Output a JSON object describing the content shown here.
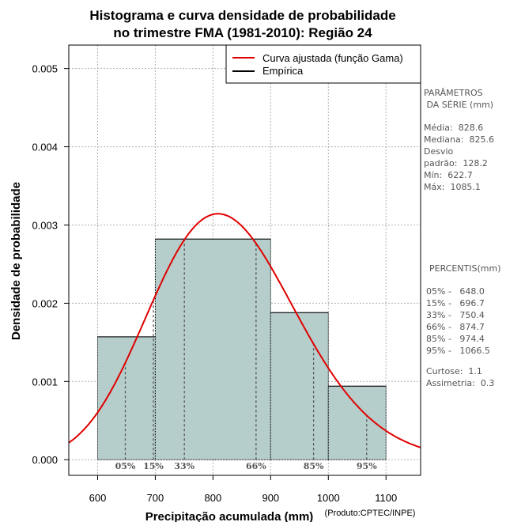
{
  "chart_data": {
    "type": "histogram",
    "title_line1": "Histograma e curva densidade de probabilidade",
    "title_line2": "no trimestre FMA (1981-2010): Região 24",
    "xlabel": "Precipitação acumulada (mm)",
    "ylabel": "Densidade de probabilidade",
    "credit": "(Produto:CPTEC/INPE)",
    "xlim": [
      550,
      1160
    ],
    "ylim": [
      -0.0002,
      0.0053
    ],
    "x_ticks": [
      600,
      700,
      800,
      900,
      1000,
      1100
    ],
    "y_ticks": [
      0.0,
      0.001,
      0.002,
      0.003,
      0.004,
      0.005
    ],
    "y_tick_labels": [
      "0.000",
      "0.001",
      "0.002",
      "0.003",
      "0.004",
      "0.005"
    ],
    "bins": [
      {
        "from": 600,
        "to": 700,
        "density": 0.00157
      },
      {
        "from": 700,
        "to": 900,
        "density": 0.00282
      },
      {
        "from": 900,
        "to": 1000,
        "density": 0.00188
      },
      {
        "from": 1000,
        "to": 1100,
        "density": 0.00094
      }
    ],
    "bin_color": "#b5cdcb",
    "curve_color": "#e00000",
    "gamma_curve": {
      "name": "Curva ajustada (função Gama)",
      "mean": 828.6,
      "sd": 128.2
    },
    "empirical_name": "Empírica",
    "percentiles": [
      {
        "label": "05%",
        "value": 648.0
      },
      {
        "label": "15%",
        "value": 696.7
      },
      {
        "label": "33%",
        "value": 750.4
      },
      {
        "label": "66%",
        "value": 874.7
      },
      {
        "label": "85%",
        "value": 974.4
      },
      {
        "label": "95%",
        "value": 1066.5
      }
    ],
    "grid": true,
    "legend_position": "top-right"
  },
  "side_panel": {
    "params_title": "PARÂMETROS\n DA SÉRIE (mm)",
    "params_text": "Média:  828.6\nMediana:  825.6\nDesvio\npadrão:  128.2\nMín:  622.7\nMáx:  1085.1",
    "percentis_title": "PERCENTIS(mm)",
    "percentis_text": "05% -   648.0\n15% -   696.7\n33% -   750.4\n66% -   874.7\n85% -   974.4\n95% -   1066.5",
    "shape_text": "Curtose:  1.1\nAssimetria:  0.3"
  }
}
